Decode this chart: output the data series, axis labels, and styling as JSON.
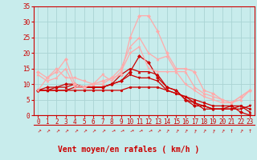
{
  "xlabel": "Vent moyen/en rafales ( km/h )",
  "xlim": [
    -0.5,
    23.5
  ],
  "ylim": [
    0,
    35
  ],
  "yticks": [
    0,
    5,
    10,
    15,
    20,
    25,
    30,
    35
  ],
  "xticks": [
    0,
    1,
    2,
    3,
    4,
    5,
    6,
    7,
    8,
    9,
    10,
    11,
    12,
    13,
    14,
    15,
    16,
    17,
    18,
    19,
    20,
    21,
    22,
    23
  ],
  "background_color": "#c8ecec",
  "grid_color": "#aad4d4",
  "series": [
    {
      "x": [
        0,
        1,
        2,
        3,
        4,
        5,
        6,
        7,
        8,
        9,
        10,
        11,
        12,
        13,
        14,
        15,
        16,
        17,
        18,
        19,
        20,
        21,
        22,
        23
      ],
      "y": [
        8,
        9,
        9,
        10,
        10,
        9,
        9,
        9,
        10,
        11,
        14,
        19,
        17,
        12,
        9,
        8,
        5,
        3,
        3,
        2,
        2,
        3,
        1,
        0
      ],
      "color": "#cc0000",
      "lw": 0.9,
      "marker": "D",
      "ms": 2.0
    },
    {
      "x": [
        0,
        1,
        2,
        3,
        4,
        5,
        6,
        7,
        8,
        9,
        10,
        11,
        12,
        13,
        14,
        15,
        16,
        17,
        18,
        19,
        20,
        21,
        22,
        23
      ],
      "y": [
        8,
        8,
        9,
        9,
        10,
        9,
        9,
        9,
        10,
        13,
        15,
        14,
        14,
        13,
        9,
        8,
        5,
        4,
        2,
        2,
        2,
        2,
        3,
        1
      ],
      "color": "#cc0000",
      "lw": 0.9,
      "marker": "^",
      "ms": 2.0
    },
    {
      "x": [
        0,
        1,
        2,
        3,
        4,
        5,
        6,
        7,
        8,
        9,
        10,
        11,
        12,
        13,
        14,
        15,
        16,
        17,
        18,
        19,
        20,
        21,
        22,
        23
      ],
      "y": [
        8,
        8,
        8,
        8,
        9,
        9,
        9,
        9,
        10,
        11,
        13,
        12,
        12,
        11,
        8,
        7,
        6,
        4,
        3,
        2,
        2,
        2,
        2,
        3
      ],
      "color": "#cc0000",
      "lw": 0.9,
      "marker": "v",
      "ms": 2.0
    },
    {
      "x": [
        0,
        1,
        2,
        3,
        4,
        5,
        6,
        7,
        8,
        9,
        10,
        11,
        12,
        13,
        14,
        15,
        16,
        17,
        18,
        19,
        20,
        21,
        22,
        23
      ],
      "y": [
        8,
        8,
        8,
        8,
        8,
        8,
        8,
        8,
        8,
        8,
        9,
        9,
        9,
        9,
        8,
        7,
        6,
        5,
        4,
        3,
        3,
        3,
        3,
        2
      ],
      "color": "#cc0000",
      "lw": 0.9,
      "marker": "o",
      "ms": 1.8
    },
    {
      "x": [
        0,
        1,
        2,
        3,
        4,
        5,
        6,
        7,
        8,
        9,
        10,
        11,
        12,
        13,
        14,
        15,
        16,
        17,
        18,
        19,
        20,
        21,
        22,
        23
      ],
      "y": [
        14,
        12,
        14,
        18,
        10,
        9,
        10,
        11,
        12,
        13,
        25,
        32,
        32,
        27,
        20,
        15,
        15,
        14,
        8,
        7,
        5,
        4,
        6,
        8
      ],
      "color": "#ffaaaa",
      "lw": 0.9,
      "marker": "D",
      "ms": 2.0
    },
    {
      "x": [
        0,
        1,
        2,
        3,
        4,
        5,
        6,
        7,
        8,
        9,
        10,
        11,
        12,
        13,
        14,
        15,
        16,
        17,
        18,
        19,
        20,
        21,
        22,
        23
      ],
      "y": [
        13,
        11,
        12,
        15,
        9,
        9,
        10,
        10,
        12,
        15,
        22,
        25,
        20,
        18,
        19,
        14,
        14,
        9,
        7,
        6,
        5,
        4,
        5,
        8
      ],
      "color": "#ffaaaa",
      "lw": 0.9,
      "marker": "^",
      "ms": 2.0
    },
    {
      "x": [
        0,
        1,
        2,
        3,
        4,
        5,
        6,
        7,
        8,
        9,
        10,
        11,
        12,
        13,
        14,
        15,
        16,
        17,
        18,
        19,
        20,
        21,
        22,
        23
      ],
      "y": [
        8,
        12,
        15,
        12,
        12,
        11,
        10,
        13,
        11,
        14,
        20,
        22,
        15,
        14,
        14,
        14,
        10,
        8,
        6,
        5,
        4,
        4,
        6,
        8
      ],
      "color": "#ffaaaa",
      "lw": 0.9,
      "marker": "v",
      "ms": 2.0
    }
  ],
  "arrow_angles": [
    45,
    45,
    45,
    45,
    45,
    45,
    45,
    45,
    60,
    60,
    60,
    60,
    60,
    45,
    30,
    30,
    30,
    15,
    30,
    15,
    30,
    0,
    30,
    0
  ],
  "xlabel_color": "#cc0000",
  "xlabel_fontsize": 7,
  "tick_color": "#cc0000",
  "tick_fontsize": 5.5
}
